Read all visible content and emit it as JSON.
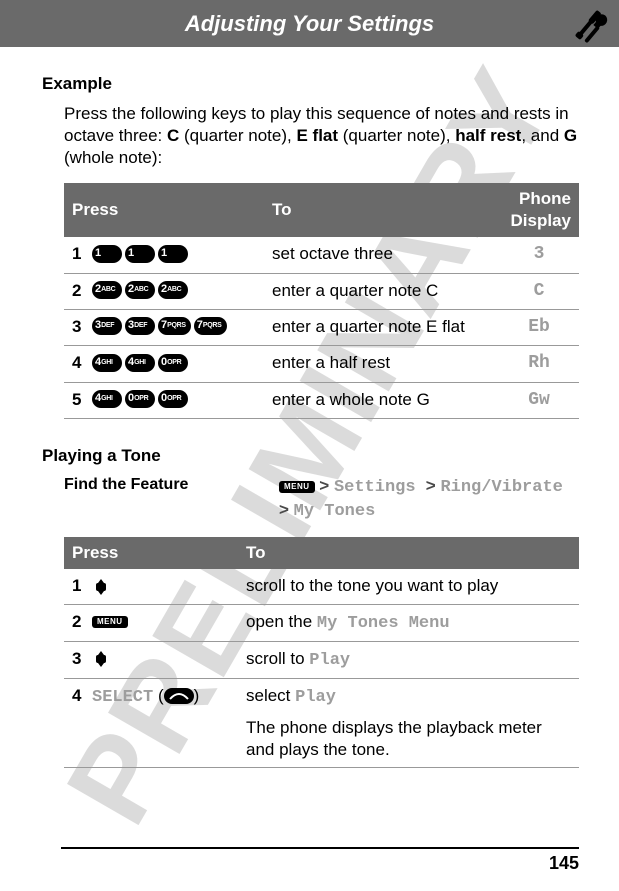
{
  "watermark": "PRELIMINARY",
  "header_title": "Adjusting Your Settings",
  "example": {
    "title": "Example",
    "intro_parts": [
      "Press the following keys to play this sequence of notes and rests in octave three: ",
      "C",
      " (quarter note), ",
      "E flat",
      " (quarter note), ",
      "half rest",
      ", and ",
      "G",
      " (whole note):"
    ]
  },
  "table1": {
    "headers": [
      "Press",
      "To",
      "Phone Display"
    ],
    "rows": [
      {
        "n": "1",
        "keys": [
          [
            "1",
            ""
          ],
          [
            "1",
            ""
          ],
          [
            "1",
            ""
          ]
        ],
        "to": "set octave three",
        "disp": "3"
      },
      {
        "n": "2",
        "keys": [
          [
            "2",
            "ABC"
          ],
          [
            "2",
            "ABC"
          ],
          [
            "2",
            "ABC"
          ]
        ],
        "to_pre": "enter a quarter note ",
        "to_b": "C",
        "disp": "C"
      },
      {
        "n": "3",
        "keys": [
          [
            "3",
            "DEF"
          ],
          [
            "3",
            "DEF"
          ],
          [
            "7",
            "PQRS"
          ],
          [
            "7",
            "PQRS"
          ]
        ],
        "to_pre": "enter a quarter note ",
        "to_b": "E flat",
        "disp": "Eb"
      },
      {
        "n": "4",
        "keys": [
          [
            "4",
            "GHI"
          ],
          [
            "4",
            "GHI"
          ],
          [
            "0",
            "OPR"
          ]
        ],
        "to_pre": "enter a ",
        "to_b": "half rest",
        "disp": "Rh"
      },
      {
        "n": "5",
        "keys": [
          [
            "4",
            "GHI"
          ],
          [
            "0",
            "OPR"
          ],
          [
            "0",
            "OPR"
          ]
        ],
        "to_pre": "enter a whole note ",
        "to_b": "G",
        "disp": "Gw"
      }
    ]
  },
  "playtone": {
    "title": "Playing a Tone",
    "ftf_label": "Find the Feature",
    "menu_label": "MENU",
    "path": [
      "Settings",
      "Ring/Vibrate",
      "My Tones"
    ]
  },
  "table2": {
    "headers": [
      "Press",
      "To"
    ],
    "rows": [
      {
        "n": "1",
        "ctrl": "nav",
        "to": "scroll to the tone you want to play"
      },
      {
        "n": "2",
        "ctrl": "menu",
        "to_pre": "open the ",
        "to_mono": "My Tones Menu"
      },
      {
        "n": "3",
        "ctrl": "nav",
        "to_pre": "scroll to ",
        "to_mono": "Play"
      },
      {
        "n": "4",
        "ctrl": "soft",
        "soft_label": "SELECT",
        "to_pre": "select ",
        "to_mono": "Play",
        "extra": "The phone displays the playback meter and plays the tone."
      }
    ]
  },
  "page_number": "145",
  "colors": {
    "header_bg": "#6a6a6a",
    "mono_gray": "#9d9d9d"
  }
}
